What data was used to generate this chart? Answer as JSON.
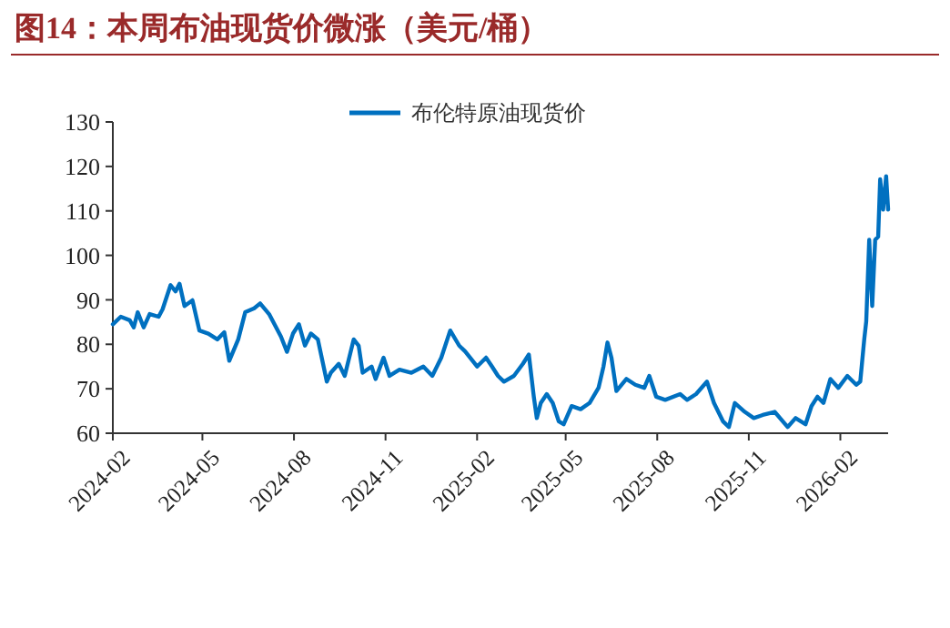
{
  "chart_data": {
    "type": "line",
    "title": "图14：本周布油现货价微涨（美元/桶）",
    "x": [
      "2024-02-01",
      "2024-02-09",
      "2024-02-18",
      "2024-02-22",
      "2024-02-26",
      "2024-03-03",
      "2024-03-09",
      "2024-03-18",
      "2024-03-22",
      "2024-03-30",
      "2024-04-04",
      "2024-04-08",
      "2024-04-13",
      "2024-04-21",
      "2024-04-28",
      "2024-05-07",
      "2024-05-16",
      "2024-05-23",
      "2024-05-28",
      "2024-06-06",
      "2024-06-13",
      "2024-06-22",
      "2024-06-28",
      "2024-07-07",
      "2024-07-19",
      "2024-07-25",
      "2024-07-31",
      "2024-08-06",
      "2024-08-12",
      "2024-08-18",
      "2024-08-25",
      "2024-09-03",
      "2024-09-07",
      "2024-09-15",
      "2024-09-21",
      "2024-09-30",
      "2024-10-05",
      "2024-10-09",
      "2024-10-18",
      "2024-10-22",
      "2024-10-30",
      "2024-11-05",
      "2024-11-15",
      "2024-11-27",
      "2024-12-09",
      "2024-12-18",
      "2024-12-27",
      "2025-01-05",
      "2025-01-14",
      "2025-01-20",
      "2025-02-01",
      "2025-02-10",
      "2025-02-16",
      "2025-02-22",
      "2025-02-28",
      "2025-03-10",
      "2025-03-19",
      "2025-03-25",
      "2025-03-30",
      "2025-04-02",
      "2025-04-06",
      "2025-04-12",
      "2025-04-18",
      "2025-04-24",
      "2025-04-29",
      "2025-05-07",
      "2025-05-16",
      "2025-05-25",
      "2025-06-03",
      "2025-06-08",
      "2025-06-12",
      "2025-06-16",
      "2025-06-21",
      "2025-07-01",
      "2025-07-10",
      "2025-07-19",
      "2025-07-24",
      "2025-07-31",
      "2025-08-09",
      "2025-08-24",
      "2025-08-31",
      "2025-09-09",
      "2025-09-20",
      "2025-09-27",
      "2025-10-06",
      "2025-10-12",
      "2025-10-18",
      "2025-10-28",
      "2025-11-06",
      "2025-11-15",
      "2025-11-27",
      "2025-12-10",
      "2025-12-18",
      "2025-12-28",
      "2026-01-03",
      "2026-01-09",
      "2026-01-15",
      "2026-01-22",
      "2026-01-30",
      "2026-02-08",
      "2026-02-17",
      "2026-02-21",
      "2026-02-25",
      "2026-02-27",
      "2026-03-02",
      "2026-03-05",
      "2026-03-08",
      "2026-03-11",
      "2026-03-13",
      "2026-03-16",
      "2026-03-19",
      "2026-03-21"
    ],
    "series": [
      {
        "name": "布伦特原油现货价",
        "color": "#0070c0",
        "values": [
          84.5,
          86.2,
          85.4,
          83.8,
          87.2,
          83.8,
          86.8,
          86.2,
          87.9,
          93.3,
          91.9,
          93.6,
          88.6,
          89.9,
          83.1,
          82.4,
          81.1,
          82.7,
          76.3,
          81.1,
          87.2,
          88.1,
          89.2,
          86.8,
          81.7,
          78.3,
          82.4,
          84.5,
          79.7,
          82.4,
          81.1,
          71.6,
          73.6,
          75.6,
          72.9,
          81.1,
          79.7,
          73.6,
          75.0,
          72.2,
          77.0,
          72.9,
          74.3,
          73.6,
          75.0,
          72.9,
          77.0,
          83.1,
          79.7,
          78.4,
          75.0,
          77.0,
          75.0,
          72.9,
          71.6,
          72.9,
          75.6,
          77.7,
          68.2,
          63.4,
          66.8,
          68.8,
          66.8,
          62.7,
          62.0,
          66.1,
          65.4,
          66.8,
          70.2,
          75.0,
          80.4,
          77.0,
          69.5,
          72.2,
          70.9,
          70.2,
          72.9,
          68.2,
          67.5,
          68.8,
          67.5,
          68.8,
          71.6,
          66.8,
          62.7,
          61.4,
          66.8,
          64.8,
          63.4,
          64.1,
          64.8,
          61.4,
          63.4,
          62.0,
          66.1,
          68.2,
          66.8,
          72.2,
          70.2,
          72.9,
          70.9,
          71.6,
          81.1,
          85.1,
          103.5,
          88.6,
          103.5,
          104.2,
          117.1,
          110.3,
          117.8,
          110.3
        ]
      }
    ],
    "xlim": [
      "2024-02-01",
      "2026-03-21"
    ],
    "xticks": [
      "2024-02",
      "2024-05",
      "2024-08",
      "2024-11",
      "2025-02",
      "2025-05",
      "2025-08",
      "2025-11",
      "2026-02"
    ],
    "ylim": [
      60,
      130
    ],
    "yticks": [
      60,
      70,
      80,
      90,
      100,
      110,
      120,
      130
    ],
    "legend": "top",
    "grid": false
  }
}
